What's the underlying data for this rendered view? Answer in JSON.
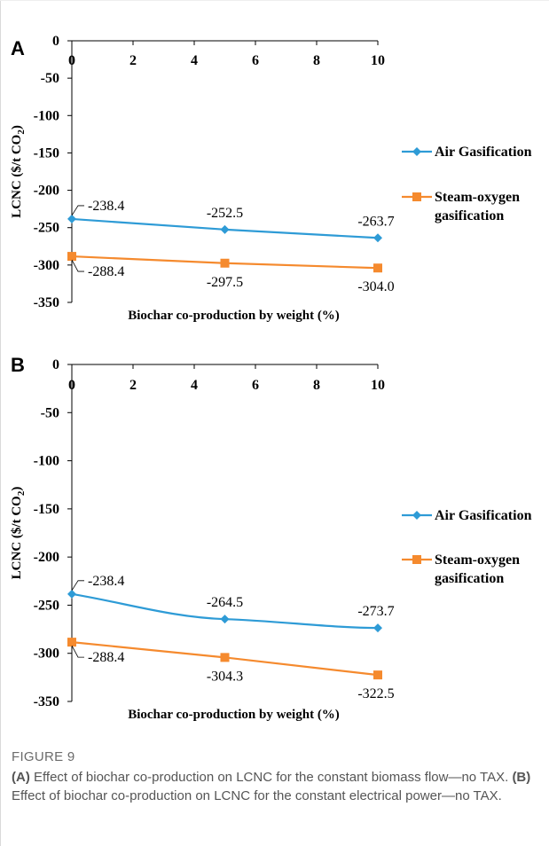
{
  "caption": {
    "figure_label": "FIGURE 9",
    "part_a_tag": "(A)",
    "part_a_text": " Effect of biochar co-production on LCNC for the constant biomass flow—no TAX. ",
    "part_b_tag": "(B)",
    "part_b_text": " Effect of biochar co-production on LCNC for the constant electrical power—no TAX."
  },
  "colors": {
    "air": "#2e9bd6",
    "steam": "#f58a2e"
  },
  "chart_data": [
    {
      "panel": "A",
      "type": "line",
      "xlabel": "Biochar co-production by weight (%)",
      "ylabel": "LCNC ($/t CO2)",
      "ylabel_main": "LCNC ($/t CO",
      "ylabel_sub": "2",
      "ylabel_close": ")",
      "xticks": [
        0,
        2,
        4,
        6,
        8,
        10
      ],
      "yticks": [
        0,
        -50,
        -100,
        -150,
        -200,
        -250,
        -300,
        -350
      ],
      "xlim": [
        0,
        10
      ],
      "ylim": [
        -350,
        0
      ],
      "legend_position": "right",
      "series": [
        {
          "name": "Air Gasification",
          "name_lines": [
            "Air Gasification"
          ],
          "marker": "diamond",
          "x": [
            0,
            5,
            10
          ],
          "y": [
            -238.4,
            -252.5,
            -263.7
          ],
          "labels": [
            "-238.4",
            "-252.5",
            "-263.7"
          ]
        },
        {
          "name": "Steam-oxygen gasification",
          "name_lines": [
            "Steam-oxygen",
            "gasification"
          ],
          "marker": "square",
          "x": [
            0,
            5,
            10
          ],
          "y": [
            -288.4,
            -297.5,
            -304.0
          ],
          "labels": [
            "-288.4",
            "-297.5",
            "-304.0"
          ]
        }
      ]
    },
    {
      "panel": "B",
      "type": "line",
      "xlabel": "Biochar co-production by weight (%)",
      "ylabel": "LCNC ($/t CO2)",
      "ylabel_main": "LCNC ($/t CO",
      "ylabel_sub": "2",
      "ylabel_close": ")",
      "xticks": [
        0,
        2,
        4,
        6,
        8,
        10
      ],
      "yticks": [
        0,
        -50,
        -100,
        -150,
        -200,
        -250,
        -300,
        -350
      ],
      "xlim": [
        0,
        10
      ],
      "ylim": [
        -350,
        0
      ],
      "legend_position": "right",
      "series": [
        {
          "name": "Air Gasification",
          "name_lines": [
            "Air Gasification"
          ],
          "marker": "diamond",
          "x": [
            0,
            5,
            10
          ],
          "y": [
            -238.4,
            -264.5,
            -273.7
          ],
          "labels": [
            "-238.4",
            "-264.5",
            "-273.7"
          ]
        },
        {
          "name": "Steam-oxygen gasification",
          "name_lines": [
            "Steam-oxygen",
            "gasification"
          ],
          "marker": "square",
          "x": [
            0,
            5,
            10
          ],
          "y": [
            -288.4,
            -304.3,
            -322.5
          ],
          "labels": [
            "-288.4",
            "-304.3",
            "-322.5"
          ]
        }
      ]
    }
  ]
}
